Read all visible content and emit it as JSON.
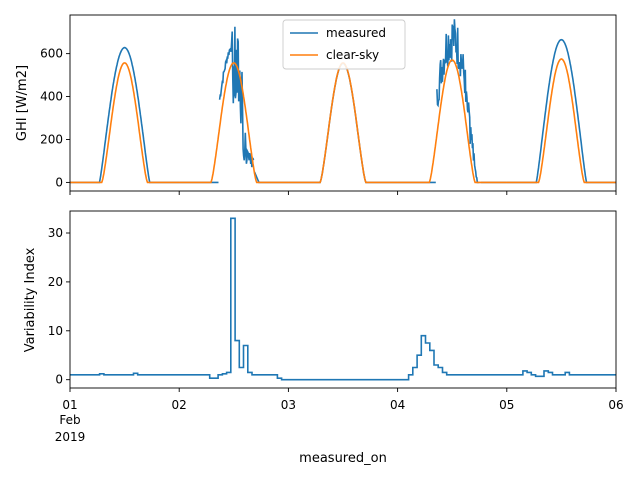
{
  "chart_data": [
    {
      "type": "line",
      "ylabel": "GHI [W/m2]",
      "ylim": [
        -40,
        780
      ],
      "yticks": [
        0,
        200,
        400,
        600
      ],
      "x_domain_days": [
        0,
        5
      ],
      "legend": {
        "placement": "top-center",
        "entries": [
          "measured",
          "clear-sky"
        ]
      },
      "series": [
        {
          "name": "measured",
          "color": "#1f77b4",
          "days": [
            {
              "start": 0.0,
              "end": 2.0,
              "peak": 628,
              "shape": "smooth"
            },
            {
              "start": 1.35,
              "end": 1.95,
              "peak": 690,
              "shape": "noisy-early"
            },
            {
              "start": 2.0,
              "end": 3.0,
              "peak": 555,
              "shape": "clearsky"
            },
            {
              "start": 3.35,
              "end": 3.95,
              "peak": 760,
              "shape": "noisy"
            },
            {
              "start": 4.0,
              "end": 5.0,
              "peak": 665,
              "shape": "smooth"
            }
          ]
        },
        {
          "name": "clear-sky",
          "color": "#ff7f0e",
          "peaks": [
            557,
            557,
            557,
            570,
            575
          ]
        }
      ]
    },
    {
      "type": "line",
      "step": true,
      "ylabel": "Variability Index",
      "xlabel": "measured_on",
      "ylim": [
        -1.7,
        34.5
      ],
      "yticks": [
        0,
        10,
        20,
        30
      ],
      "x_tick_labels": [
        "01",
        "02",
        "03",
        "04",
        "05",
        "06"
      ],
      "x_tick_extra": [
        "Feb",
        "2019"
      ],
      "series": [
        {
          "name": "Variability Index",
          "color": "#1f77b4",
          "values": [
            1.0,
            1.0,
            1.0,
            1.0,
            1.0,
            1.0,
            1.0,
            1.2,
            1.0,
            1.0,
            1.0,
            1.0,
            1.0,
            1.0,
            1.0,
            1.3,
            1.0,
            1.0,
            1.0,
            1.0,
            1.0,
            1.0,
            1.0,
            1.0,
            1.0,
            1.0,
            1.0,
            1.0,
            1.0,
            1.0,
            1.0,
            1.0,
            1.0,
            0.3,
            0.3,
            1.0,
            1.2,
            1.5,
            33.0,
            8.0,
            2.5,
            7.0,
            1.5,
            1.0,
            1.0,
            1.0,
            1.0,
            1.0,
            1.0,
            0.3,
            0.0,
            0.0,
            0.0,
            0.0,
            0.0,
            0.0,
            0.0,
            0.0,
            0.0,
            0.0,
            0.0,
            0.0,
            0.0,
            0.0,
            0.0,
            0.0,
            0.0,
            0.0,
            0.0,
            0.0,
            0.0,
            0.0,
            0.0,
            0.0,
            0.0,
            0.0,
            0.0,
            0.0,
            0.0,
            0.0,
            1.0,
            2.5,
            5.0,
            9.0,
            7.5,
            6.0,
            3.0,
            2.5,
            1.5,
            1.0,
            1.0,
            1.0,
            1.0,
            1.0,
            1.0,
            1.0,
            1.0,
            1.0,
            1.0,
            1.0,
            1.0,
            1.0,
            1.0,
            1.0,
            1.0,
            1.0,
            1.0,
            1.8,
            1.5,
            1.0,
            0.7,
            0.7,
            1.8,
            1.5,
            1.0,
            1.0,
            1.0,
            1.5,
            1.0,
            1.0,
            1.0,
            1.0,
            1.0,
            1.0,
            1.0,
            1.0,
            1.0,
            1.0,
            1.0
          ]
        }
      ]
    }
  ]
}
